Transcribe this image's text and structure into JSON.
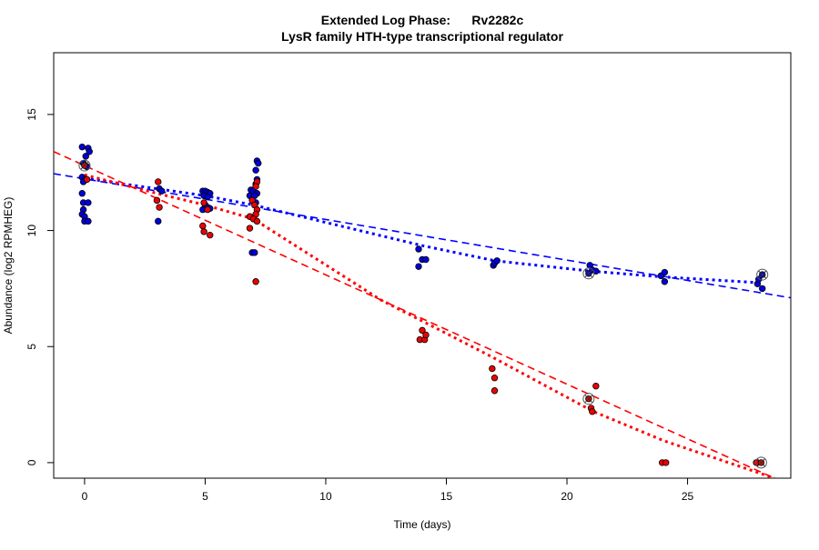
{
  "chart_data": {
    "type": "scatter",
    "title": "Extended Log Phase:      Rv2282c",
    "subtitle": "LysR family HTH-type transcriptional regulator",
    "xlabel": "Time  (days)",
    "ylabel": "Abundance  (log2 RPMHEG)",
    "xlim": [
      -1.28,
      29.28
    ],
    "ylim": [
      -0.67,
      17.66
    ],
    "xticks": [
      0,
      5,
      10,
      15,
      20,
      25
    ],
    "yticks": [
      0,
      5,
      10,
      15
    ],
    "grid": false,
    "colors": {
      "blue": "#0000ff",
      "red": "#ff0000",
      "blue_fill": "#0000dd",
      "red_fill": "#ee0000"
    },
    "series": [
      {
        "color": "#0000ff",
        "points": [
          [
            -0.1,
            13.6
          ],
          [
            0.15,
            13.55
          ],
          [
            0.2,
            13.4
          ],
          [
            0.05,
            13.2
          ],
          [
            -0.05,
            12.9
          ],
          [
            0.1,
            12.75
          ],
          [
            -0.1,
            12.3
          ],
          [
            0.05,
            12.2
          ],
          [
            -0.05,
            12.1
          ],
          [
            -0.1,
            11.6
          ],
          [
            -0.05,
            11.2
          ],
          [
            0.15,
            11.2
          ],
          [
            -0.05,
            10.9
          ],
          [
            -0.1,
            10.7
          ],
          [
            0.0,
            10.6
          ],
          [
            0.0,
            10.4
          ],
          [
            0.15,
            10.4
          ],
          [
            3.1,
            11.8
          ],
          [
            3.2,
            11.7
          ],
          [
            3.05,
            10.4
          ],
          [
            4.9,
            11.7
          ],
          [
            5.0,
            11.7
          ],
          [
            5.1,
            11.65
          ],
          [
            5.2,
            11.6
          ],
          [
            4.95,
            11.5
          ],
          [
            5.1,
            11.45
          ],
          [
            5.0,
            11.1
          ],
          [
            5.1,
            11.0
          ],
          [
            4.9,
            10.9
          ],
          [
            5.2,
            10.95
          ],
          [
            7.15,
            13.0
          ],
          [
            7.2,
            12.9
          ],
          [
            7.1,
            12.6
          ],
          [
            7.15,
            12.2
          ],
          [
            7.1,
            12.0
          ],
          [
            6.9,
            11.75
          ],
          [
            7.0,
            11.7
          ],
          [
            7.15,
            11.6
          ],
          [
            6.85,
            11.5
          ],
          [
            7.05,
            11.5
          ],
          [
            7.1,
            11.2
          ],
          [
            7.0,
            10.5
          ],
          [
            6.95,
            9.05
          ],
          [
            7.05,
            9.05
          ],
          [
            13.85,
            9.2
          ],
          [
            14.0,
            8.75
          ],
          [
            14.15,
            8.75
          ],
          [
            13.85,
            8.45
          ],
          [
            16.95,
            8.5
          ],
          [
            17.0,
            8.6
          ],
          [
            17.1,
            8.7
          ],
          [
            20.95,
            8.5
          ],
          [
            21.05,
            8.3
          ],
          [
            21.2,
            8.25
          ],
          [
            20.9,
            8.15
          ],
          [
            23.9,
            8.05
          ],
          [
            24.05,
            8.2
          ],
          [
            24.05,
            7.8
          ],
          [
            27.9,
            7.7
          ],
          [
            27.95,
            7.9
          ],
          [
            28.1,
            7.5
          ],
          [
            28.1,
            8.1
          ]
        ],
        "fit_dashed": [
          [
            -1.28,
            12.45
          ],
          [
            29.28,
            7.1
          ]
        ],
        "fit_dotted": [
          [
            0,
            12.25
          ],
          [
            3,
            11.8
          ],
          [
            5,
            11.5
          ],
          [
            7,
            11.1
          ],
          [
            14,
            9.35
          ],
          [
            17,
            8.7
          ],
          [
            21,
            8.25
          ],
          [
            24,
            8.0
          ],
          [
            28,
            7.75
          ]
        ]
      },
      {
        "color": "#ff0000",
        "points": [
          [
            0.0,
            12.8
          ],
          [
            0.1,
            12.2
          ],
          [
            3.05,
            12.1
          ],
          [
            3.0,
            11.3
          ],
          [
            3.1,
            11.0
          ],
          [
            4.95,
            11.2
          ],
          [
            5.1,
            10.9
          ],
          [
            4.9,
            10.2
          ],
          [
            4.95,
            9.95
          ],
          [
            5.2,
            9.8
          ],
          [
            7.15,
            12.1
          ],
          [
            7.1,
            11.9
          ],
          [
            6.95,
            11.3
          ],
          [
            7.05,
            11.1
          ],
          [
            7.15,
            10.9
          ],
          [
            7.1,
            10.7
          ],
          [
            6.85,
            10.6
          ],
          [
            7.0,
            10.5
          ],
          [
            7.15,
            10.4
          ],
          [
            6.85,
            10.1
          ],
          [
            7.1,
            7.8
          ],
          [
            13.9,
            5.3
          ],
          [
            14.0,
            5.7
          ],
          [
            14.1,
            5.3
          ],
          [
            14.15,
            5.5
          ],
          [
            16.9,
            4.05
          ],
          [
            17.0,
            3.65
          ],
          [
            17.0,
            3.1
          ],
          [
            21.2,
            3.3
          ],
          [
            20.9,
            2.75
          ],
          [
            21.0,
            2.35
          ],
          [
            21.05,
            2.2
          ],
          [
            23.95,
            0.0
          ],
          [
            24.1,
            0.0
          ],
          [
            27.85,
            0.0
          ],
          [
            28.05,
            0.0
          ]
        ],
        "fit_dashed": [
          [
            -1.28,
            13.4
          ],
          [
            28.6,
            -0.67
          ]
        ],
        "fit_dotted": [
          [
            0,
            12.4
          ],
          [
            3,
            11.6
          ],
          [
            5,
            11.1
          ],
          [
            7,
            10.5
          ],
          [
            12.3,
            7.0
          ],
          [
            14,
            6.1
          ],
          [
            16.9,
            4.55
          ],
          [
            21.1,
            2.2
          ],
          [
            24,
            0.95
          ],
          [
            28.6,
            -0.67
          ]
        ]
      }
    ],
    "highlighted": [
      [
        0.0,
        12.8
      ],
      [
        20.9,
        8.15
      ],
      [
        28.1,
        8.1
      ],
      [
        20.9,
        2.75
      ],
      [
        28.05,
        0.0
      ]
    ]
  }
}
